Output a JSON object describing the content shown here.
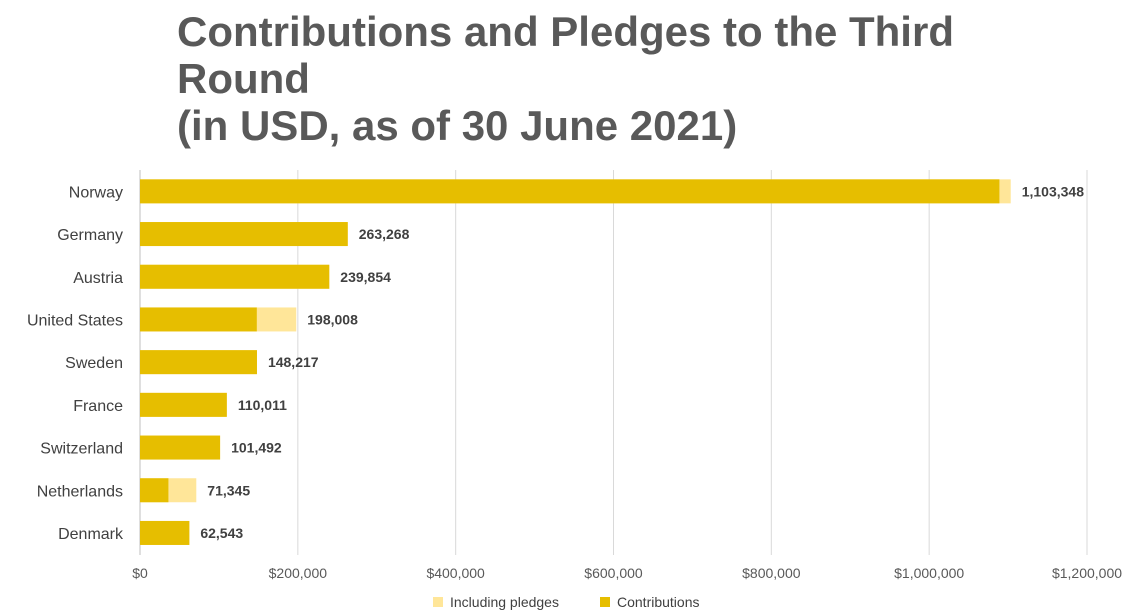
{
  "chart_data": {
    "type": "bar",
    "orientation": "horizontal",
    "stacking": "overlay",
    "title_lines": [
      "Contributions and Pledges to the Third",
      "Round",
      "(in USD, as of 30 June 2021)"
    ],
    "categories": [
      "Norway",
      "Germany",
      "Austria",
      "United States",
      "Sweden",
      "France",
      "Switzerland",
      "Netherlands",
      "Denmark"
    ],
    "series": [
      {
        "name": "Including pledges",
        "color": "#FFE699",
        "values": [
          1103348,
          263268,
          239854,
          198008,
          148217,
          110011,
          101492,
          71345,
          62543
        ]
      },
      {
        "name": "Contributions",
        "color": "#E6BE00",
        "values": [
          1089000,
          263268,
          239854,
          148000,
          148217,
          110011,
          101492,
          36000,
          62543
        ]
      }
    ],
    "data_labels": [
      "1,103,348",
      "263,268",
      "239,854",
      "198,008",
      "148,217",
      "110,011",
      "101,492",
      "71,345",
      "62,543"
    ],
    "xlim": [
      0,
      1200000
    ],
    "x_ticks": [
      0,
      200000,
      400000,
      600000,
      800000,
      1000000,
      1200000
    ],
    "x_tick_labels": [
      "$0",
      "$200,000",
      "$400,000",
      "$600,000",
      "$800,000",
      "$1,000,000",
      "$1,200,000"
    ],
    "grid": true,
    "legend_position": "bottom"
  }
}
